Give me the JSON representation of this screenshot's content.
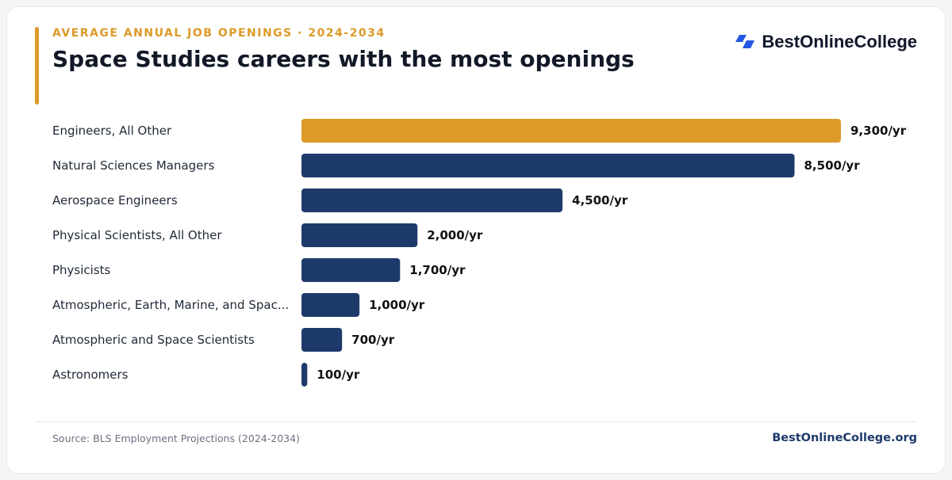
{
  "header": {
    "eyebrow": "AVERAGE ANNUAL JOB OPENINGS · 2024-2034",
    "title": "Space Studies careers with the most openings",
    "brand_name": "BestOnlineCollege",
    "brand_icon": "double-parallelogram-logo-icon"
  },
  "footer": {
    "source": "Source: BLS Employment Projections (2024-2034)",
    "site": "BestOnlineCollege.org"
  },
  "colors": {
    "highlight": "#dc9a29",
    "bar": "#1e3a6b",
    "brand_blue": "#2456e6",
    "label": "#1f2937",
    "value": "#111111"
  },
  "chart_data": {
    "type": "bar",
    "orientation": "horizontal",
    "categories": [
      "Engineers, All Other",
      "Natural Sciences Managers",
      "Aerospace Engineers",
      "Physical Scientists, All Other",
      "Physicists",
      "Atmospheric, Earth, Marine, and Spac...",
      "Atmospheric and Space Scientists",
      "Astronomers"
    ],
    "values": [
      9300,
      8500,
      4500,
      2000,
      1700,
      1000,
      700,
      100
    ],
    "value_labels": [
      "9,300/yr",
      "8,500/yr",
      "4,500/yr",
      "2,000/yr",
      "1,700/yr",
      "1,000/yr",
      "700/yr",
      "100/yr"
    ],
    "highlight_index": 0,
    "xlim": [
      0,
      9300
    ],
    "grid": false,
    "legend": "none"
  }
}
